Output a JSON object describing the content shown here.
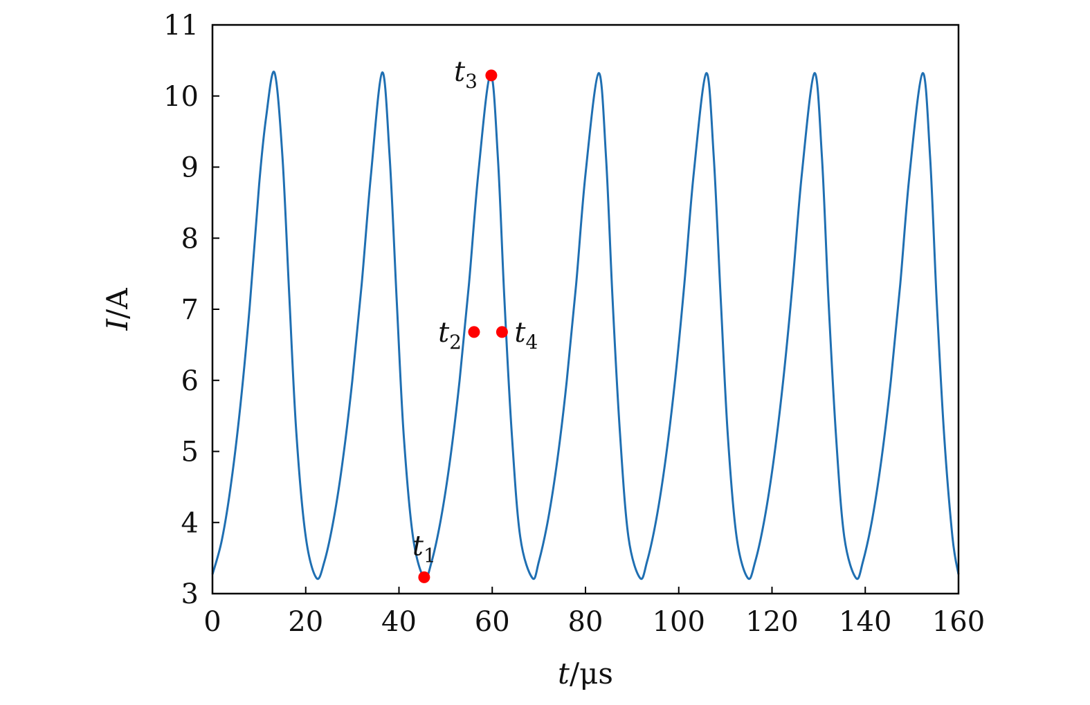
{
  "chart_data": {
    "type": "line",
    "title": "",
    "xlabel": {
      "var": "t",
      "unit": "μs"
    },
    "ylabel": {
      "var": "I",
      "unit": "A"
    },
    "xlim": [
      0,
      160
    ],
    "ylim": [
      3,
      11
    ],
    "xticks": [
      0,
      20,
      40,
      60,
      80,
      100,
      120,
      140,
      160
    ],
    "yticks": [
      3,
      4,
      5,
      6,
      7,
      8,
      9,
      10,
      11
    ],
    "grid": false,
    "legend": "none",
    "series": [
      {
        "color": "#1f6fb2",
        "x": [
          0,
          2,
          4,
          6,
          8,
          10,
          11.5,
          13.3,
          15,
          16.5,
          18,
          20,
          22.3,
          24,
          26,
          28,
          30,
          32,
          34,
          36.4,
          38,
          39.5,
          41,
          43,
          45.4,
          47,
          49,
          51,
          53,
          55,
          57,
          59.6,
          61.2,
          62.6,
          64.2,
          66,
          68.6,
          70,
          72,
          74,
          76,
          78,
          80,
          82.8,
          84.4,
          85.8,
          87.4,
          89.2,
          91.7,
          93.2,
          95.2,
          97.2,
          99.2,
          101.2,
          103.2,
          105.9,
          107.5,
          109,
          110.5,
          112.4,
          114.8,
          116.4,
          118.4,
          120.4,
          122.4,
          124.4,
          126.4,
          129.1,
          130.7,
          132.1,
          133.7,
          135.5,
          138,
          139.5,
          141.5,
          143.5,
          145.5,
          147.5,
          149.5,
          152.3,
          153.9,
          155.3,
          156.9,
          158.7,
          160
        ],
        "y": [
          3.27,
          3.75,
          4.55,
          5.65,
          7.05,
          8.75,
          9.7,
          10.33,
          9.15,
          7.15,
          5.25,
          3.8,
          3.22,
          3.45,
          4.05,
          4.9,
          6.0,
          7.35,
          8.9,
          10.33,
          9.15,
          7.15,
          5.25,
          3.8,
          3.22,
          3.45,
          4.05,
          4.9,
          6.0,
          7.35,
          8.9,
          10.3,
          9.15,
          7.15,
          5.25,
          3.8,
          3.22,
          3.45,
          4.05,
          4.9,
          6.0,
          7.35,
          8.9,
          10.32,
          9.15,
          7.15,
          5.25,
          3.8,
          3.22,
          3.45,
          4.05,
          4.9,
          6.0,
          7.35,
          8.9,
          10.32,
          9.15,
          7.15,
          5.25,
          3.8,
          3.22,
          3.45,
          4.05,
          4.9,
          6.0,
          7.35,
          8.9,
          10.32,
          9.15,
          7.15,
          5.25,
          3.8,
          3.22,
          3.45,
          4.05,
          4.9,
          6.0,
          7.35,
          8.9,
          10.32,
          9.15,
          7.15,
          5.25,
          3.8,
          3.27
        ]
      }
    ],
    "annotations": [
      {
        "name": "t",
        "sub": "1",
        "x": 45.4,
        "y": 3.23,
        "color": "#ff0000"
      },
      {
        "name": "t",
        "sub": "2",
        "x": 56.1,
        "y": 6.68,
        "color": "#ff0000"
      },
      {
        "name": "t",
        "sub": "3",
        "x": 59.8,
        "y": 10.29,
        "color": "#ff0000"
      },
      {
        "name": "t",
        "sub": "4",
        "x": 62.1,
        "y": 6.68,
        "color": "#ff0000"
      }
    ]
  }
}
